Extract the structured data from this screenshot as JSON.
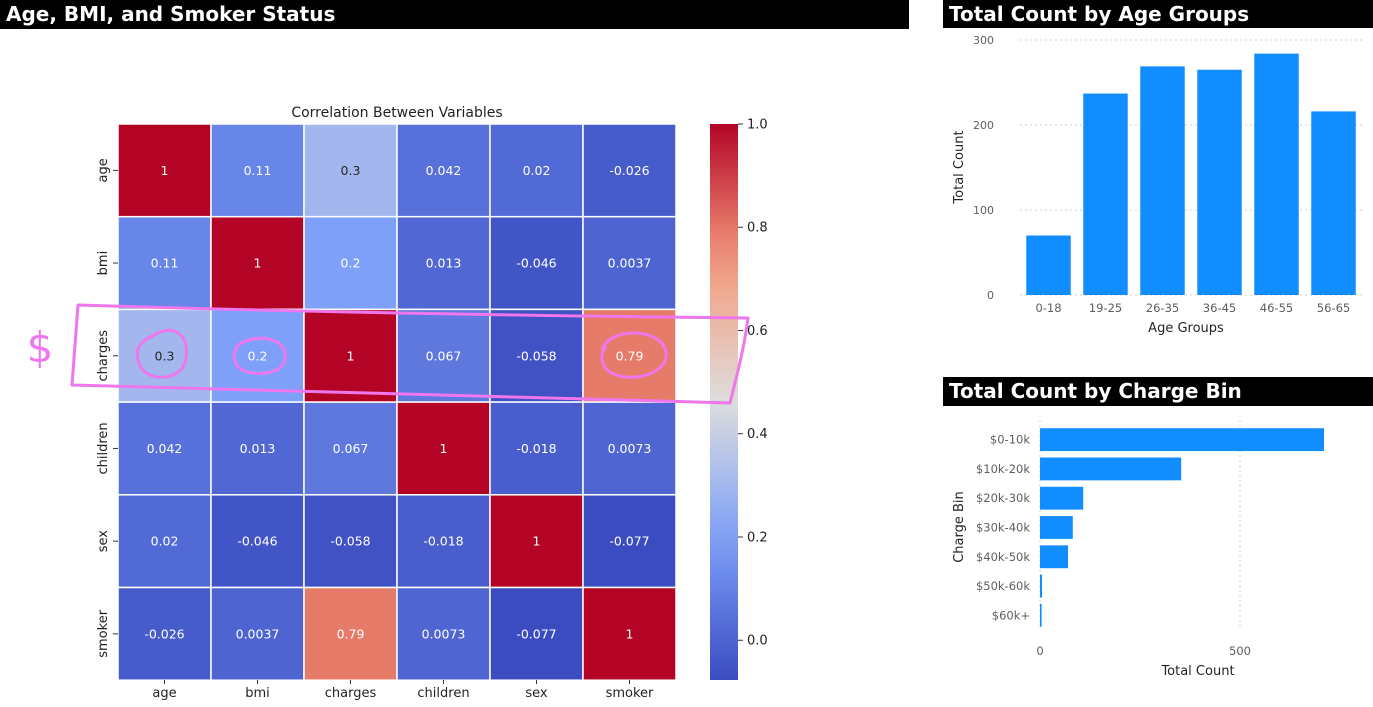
{
  "panels": {
    "left_title": "Age, BMI, and Smoker Status",
    "age_title": "Total Count by Age Groups",
    "charge_title": "Total Count by Charge Bin"
  },
  "annotation": {
    "symbol": "$"
  },
  "chart_data": [
    {
      "type": "heatmap",
      "title": "Correlation Between Variables",
      "variables": [
        "age",
        "bmi",
        "charges",
        "children",
        "sex",
        "smoker"
      ],
      "matrix": [
        [
          1,
          0.11,
          0.3,
          0.042,
          0.02,
          -0.026
        ],
        [
          0.11,
          1,
          0.2,
          0.013,
          -0.046,
          0.0037
        ],
        [
          0.3,
          0.2,
          1,
          0.067,
          -0.058,
          0.79
        ],
        [
          0.042,
          0.013,
          0.067,
          1,
          -0.018,
          0.0073
        ],
        [
          0.02,
          -0.046,
          -0.058,
          -0.018,
          1,
          -0.077
        ],
        [
          -0.026,
          0.0037,
          0.79,
          0.0073,
          -0.077,
          1
        ]
      ],
      "colorbar": {
        "min": -0.077,
        "max": 1,
        "ticks": [
          0.0,
          0.2,
          0.4,
          0.6,
          0.8,
          1.0
        ],
        "tick_labels": [
          "0.0",
          "0.2",
          "0.4",
          "0.6",
          "0.8",
          "1.0"
        ],
        "colormap": "coolwarm"
      },
      "highlighted_row": "charges",
      "highlighted_cells": [
        [
          "charges",
          "age"
        ],
        [
          "charges",
          "bmi"
        ],
        [
          "charges",
          "smoker"
        ]
      ]
    },
    {
      "type": "bar",
      "orientation": "vertical",
      "categories": [
        "0-18",
        "19-25",
        "26-35",
        "36-45",
        "46-55",
        "56-65"
      ],
      "values": [
        70,
        237,
        269,
        265,
        284,
        216
      ],
      "xlabel": "Age Groups",
      "ylabel": "Total Count",
      "ylim": [
        0,
        300
      ],
      "yticks": [
        0,
        100,
        200,
        300
      ],
      "grid": true,
      "color": "#118DFF"
    },
    {
      "type": "bar",
      "orientation": "horizontal",
      "categories": [
        "$0-10k",
        "$10k-20k",
        "$20k-30k",
        "$30k-40k",
        "$40k-50k",
        "$50k-60k",
        "$60k+"
      ],
      "values": [
        710,
        353,
        108,
        82,
        70,
        5,
        4
      ],
      "xlabel": "Total Count",
      "ylabel": "Charge Bin",
      "xlim": [
        0,
        800
      ],
      "xticks": [
        0,
        500
      ],
      "grid": true,
      "color": "#118DFF"
    }
  ]
}
